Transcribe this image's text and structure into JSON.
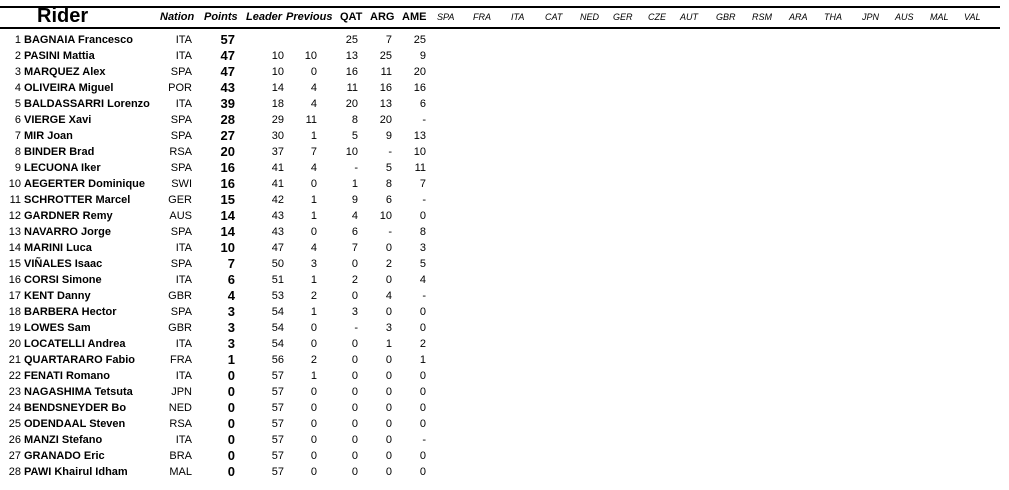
{
  "headers": {
    "rider": "Rider",
    "nation": "Nation",
    "points": "Points",
    "leader": "Leader",
    "previous": "Previous",
    "races_done": [
      "QAT",
      "ARG",
      "AME"
    ],
    "races_future": [
      "SPA",
      "FRA",
      "ITA",
      "CAT",
      "NED",
      "GER",
      "CZE",
      "AUT",
      "GBR",
      "RSM",
      "ARA",
      "THA",
      "JPN",
      "AUS",
      "MAL",
      "VAL"
    ]
  },
  "rows": [
    [
      "1",
      "BAGNAIA Francesco",
      "ITA",
      "57",
      "",
      "",
      "25",
      "7",
      "25"
    ],
    [
      "2",
      "PASINI Mattia",
      "ITA",
      "47",
      "10",
      "10",
      "13",
      "25",
      "9"
    ],
    [
      "3",
      "MARQUEZ Alex",
      "SPA",
      "47",
      "10",
      "0",
      "16",
      "11",
      "20"
    ],
    [
      "4",
      "OLIVEIRA Miguel",
      "POR",
      "43",
      "14",
      "4",
      "11",
      "16",
      "16"
    ],
    [
      "5",
      "BALDASSARRI Lorenzo",
      "ITA",
      "39",
      "18",
      "4",
      "20",
      "13",
      "6"
    ],
    [
      "6",
      "VIERGE Xavi",
      "SPA",
      "28",
      "29",
      "11",
      "8",
      "20",
      "-"
    ],
    [
      "7",
      "MIR Joan",
      "SPA",
      "27",
      "30",
      "1",
      "5",
      "9",
      "13"
    ],
    [
      "8",
      "BINDER Brad",
      "RSA",
      "20",
      "37",
      "7",
      "10",
      "-",
      "10"
    ],
    [
      "9",
      "LECUONA Iker",
      "SPA",
      "16",
      "41",
      "4",
      "-",
      "5",
      "11"
    ],
    [
      "10",
      "AEGERTER Dominique",
      "SWI",
      "16",
      "41",
      "0",
      "1",
      "8",
      "7"
    ],
    [
      "11",
      "SCHROTTER Marcel",
      "GER",
      "15",
      "42",
      "1",
      "9",
      "6",
      "-"
    ],
    [
      "12",
      "GARDNER Remy",
      "AUS",
      "14",
      "43",
      "1",
      "4",
      "10",
      "0"
    ],
    [
      "13",
      "NAVARRO Jorge",
      "SPA",
      "14",
      "43",
      "0",
      "6",
      "-",
      "8"
    ],
    [
      "14",
      "MARINI Luca",
      "ITA",
      "10",
      "47",
      "4",
      "7",
      "0",
      "3"
    ],
    [
      "15",
      "VIÑALES Isaac",
      "SPA",
      "7",
      "50",
      "3",
      "0",
      "2",
      "5"
    ],
    [
      "16",
      "CORSI Simone",
      "ITA",
      "6",
      "51",
      "1",
      "2",
      "0",
      "4"
    ],
    [
      "17",
      "KENT Danny",
      "GBR",
      "4",
      "53",
      "2",
      "0",
      "4",
      "-"
    ],
    [
      "18",
      "BARBERA Hector",
      "SPA",
      "3",
      "54",
      "1",
      "3",
      "0",
      "0"
    ],
    [
      "19",
      "LOWES Sam",
      "GBR",
      "3",
      "54",
      "0",
      "-",
      "3",
      "0"
    ],
    [
      "20",
      "LOCATELLI Andrea",
      "ITA",
      "3",
      "54",
      "0",
      "0",
      "1",
      "2"
    ],
    [
      "21",
      "QUARTARARO Fabio",
      "FRA",
      "1",
      "56",
      "2",
      "0",
      "0",
      "1"
    ],
    [
      "22",
      "FENATI Romano",
      "ITA",
      "0",
      "57",
      "1",
      "0",
      "0",
      "0"
    ],
    [
      "23",
      "NAGASHIMA Tetsuta",
      "JPN",
      "0",
      "57",
      "0",
      "0",
      "0",
      "0"
    ],
    [
      "24",
      "BENDSNEYDER Bo",
      "NED",
      "0",
      "57",
      "0",
      "0",
      "0",
      "0"
    ],
    [
      "25",
      "ODENDAAL Steven",
      "RSA",
      "0",
      "57",
      "0",
      "0",
      "0",
      "0"
    ],
    [
      "26",
      "MANZI Stefano",
      "ITA",
      "0",
      "57",
      "0",
      "0",
      "0",
      "-"
    ],
    [
      "27",
      "GRANADO Eric",
      "BRA",
      "0",
      "57",
      "0",
      "0",
      "0",
      "0"
    ],
    [
      "28",
      "PAWI Khairul Idham",
      "MAL",
      "0",
      "57",
      "0",
      "0",
      "0",
      "0"
    ]
  ]
}
